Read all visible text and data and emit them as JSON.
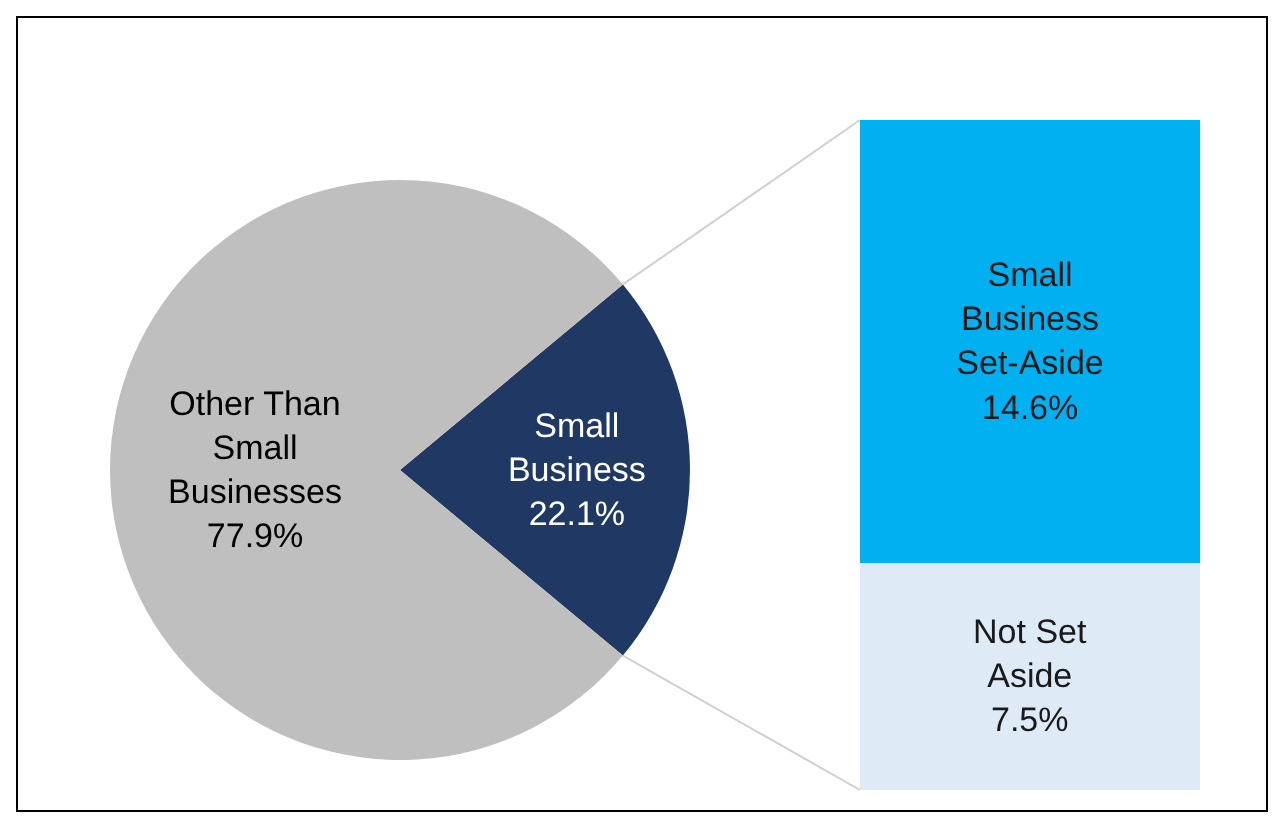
{
  "chart_data": [
    {
      "type": "pie",
      "categories": [
        "Small Business",
        "Other Than Small Businesses"
      ],
      "values": [
        22.1,
        77.9
      ],
      "colors": [
        "#1f3864",
        "#bfbfbf"
      ],
      "value_labels": [
        "22.1%",
        "77.9%"
      ],
      "legend": false
    },
    {
      "type": "bar",
      "stacked": true,
      "categories": [
        null
      ],
      "legend": false,
      "series": [
        {
          "name": "Not Set Aside",
          "color": "#deebf7",
          "values": [
            7.5
          ],
          "value_labels": [
            "7.5%"
          ]
        },
        {
          "name": "Small Business Set-Aside",
          "color": "#00b0f0",
          "values": [
            14.6
          ],
          "value_labels": [
            "14.6%"
          ]
        }
      ]
    }
  ]
}
